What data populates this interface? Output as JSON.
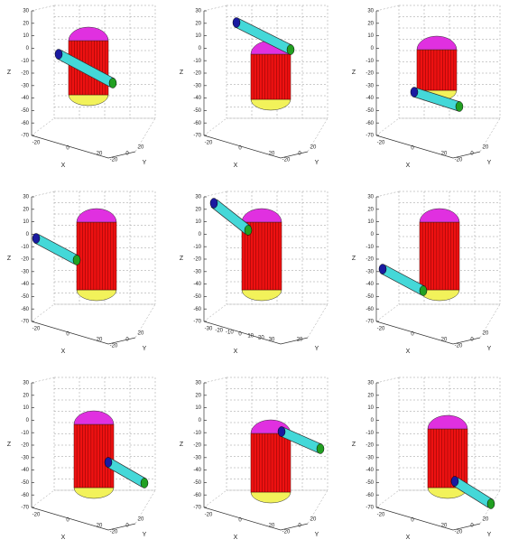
{
  "panels": [
    {
      "zlabel": "Z",
      "xlabel": "X",
      "ylabel": "Y",
      "zticks": [
        "30",
        "20",
        "10",
        "0",
        "-10",
        "-20",
        "-30",
        "-40",
        "-50",
        "-60",
        "-70"
      ],
      "xticks": [
        "-20",
        "0",
        "20"
      ],
      "yticks": [
        "-20",
        "0",
        "20"
      ]
    },
    {
      "zlabel": "Z",
      "xlabel": "X",
      "ylabel": "Y",
      "zticks": [
        "30",
        "20",
        "10",
        "0",
        "-10",
        "-20",
        "-30",
        "-40",
        "-50",
        "-60",
        "-70"
      ],
      "xticks": [
        "-20",
        "0",
        "20"
      ],
      "yticks": [
        "-20",
        "0",
        "20"
      ]
    },
    {
      "zlabel": "Z",
      "xlabel": "X",
      "ylabel": "Y",
      "zticks": [
        "30",
        "20",
        "10",
        "0",
        "-10",
        "-20",
        "-30",
        "-40",
        "-50",
        "-60",
        "-70"
      ],
      "xticks": [
        "-20",
        "0",
        "20"
      ],
      "yticks": [
        "-20",
        "0",
        "20"
      ]
    },
    {
      "zlabel": "Z",
      "xlabel": "X",
      "ylabel": "Y",
      "zticks": [
        "30",
        "20",
        "10",
        "0",
        "-10",
        "-20",
        "-30",
        "-40",
        "-50",
        "-60",
        "-70"
      ],
      "xticks": [
        "-20",
        "0",
        "20"
      ],
      "yticks": [
        "-20",
        "0",
        "20"
      ]
    },
    {
      "zlabel": "Z",
      "xlabel": "X",
      "ylabel": "Y",
      "zticks": [
        "30",
        "20",
        "10",
        "0",
        "-10",
        "-20",
        "-30",
        "-40",
        "-50",
        "-60",
        "-70"
      ],
      "xticks": [
        "-30",
        "-20",
        "-10",
        "0",
        "10",
        "20",
        "30"
      ],
      "yticks": [
        "20"
      ]
    },
    {
      "zlabel": "Z",
      "xlabel": "X",
      "ylabel": "Y",
      "zticks": [
        "30",
        "20",
        "10",
        "0",
        "-10",
        "-20",
        "-30",
        "-40",
        "-50",
        "-60",
        "-70"
      ],
      "xticks": [
        "-20",
        "0",
        "20"
      ],
      "yticks": [
        "-20",
        "0",
        "20"
      ]
    },
    {
      "zlabel": "Z",
      "xlabel": "X",
      "ylabel": "Y",
      "zticks": [
        "30",
        "20",
        "10",
        "0",
        "-10",
        "-20",
        "-30",
        "-40",
        "-50",
        "-60",
        "-70"
      ],
      "xticks": [
        "-20",
        "0",
        "20"
      ],
      "yticks": [
        "-20",
        "0",
        "20"
      ]
    },
    {
      "zlabel": "Z",
      "xlabel": "X",
      "ylabel": "Y",
      "zticks": [
        "30",
        "20",
        "10",
        "0",
        "-10",
        "-20",
        "-30",
        "-40",
        "-50",
        "-60",
        "-70"
      ],
      "xticks": [
        "-20",
        "0",
        "20"
      ],
      "yticks": [
        "-20",
        "0",
        "20"
      ]
    },
    {
      "zlabel": "Z",
      "xlabel": "X",
      "ylabel": "Y",
      "zticks": [
        "30",
        "20",
        "10",
        "0",
        "-10",
        "-20",
        "-30",
        "-40",
        "-50",
        "-60",
        "-70"
      ],
      "xticks": [
        "-20",
        "0",
        "20"
      ],
      "yticks": [
        "-20",
        "0",
        "20"
      ]
    }
  ]
}
